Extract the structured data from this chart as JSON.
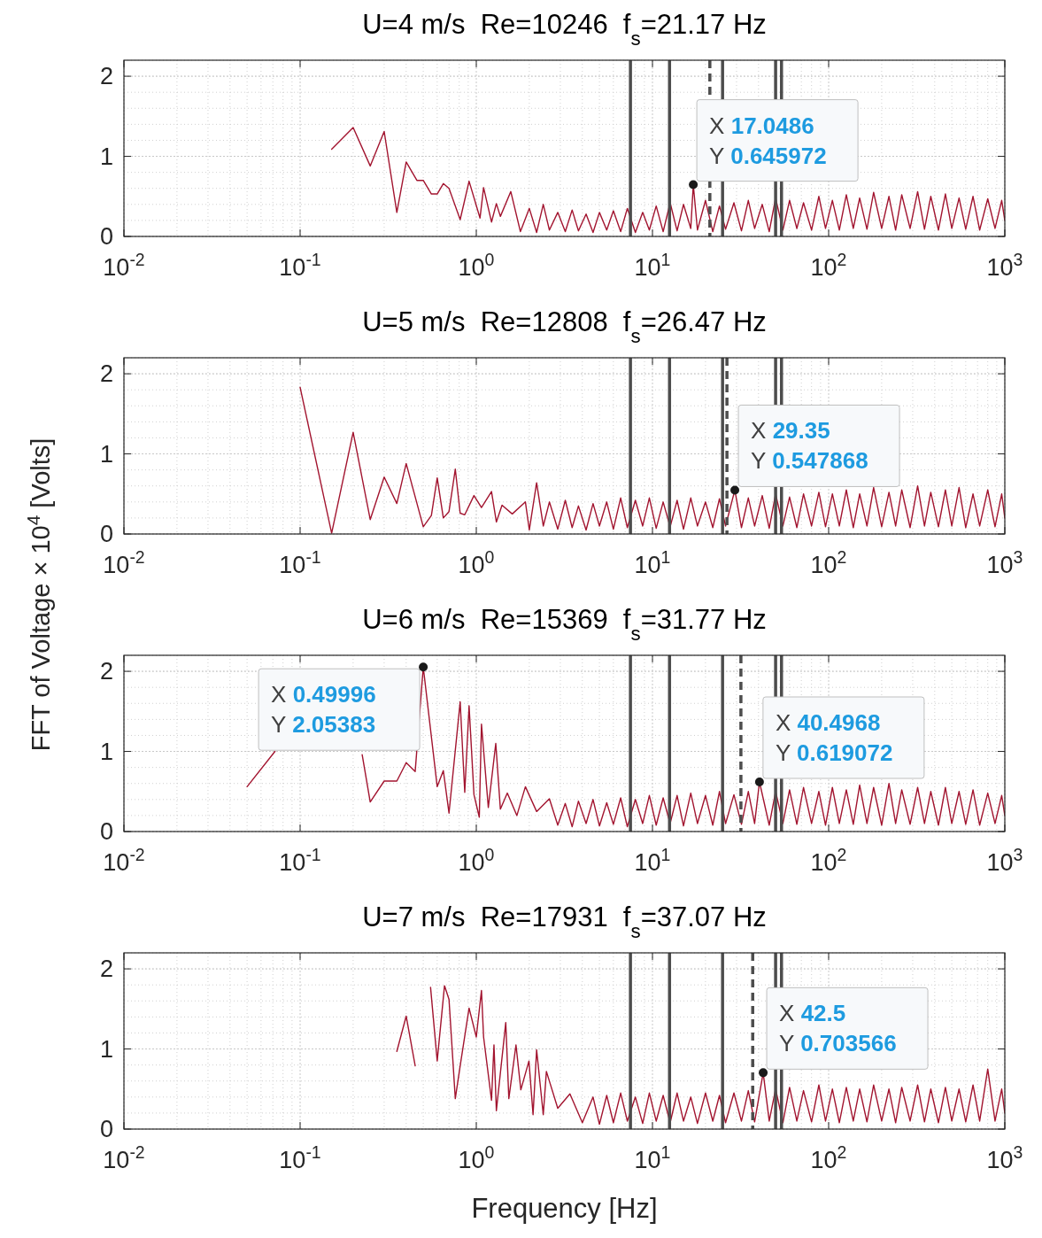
{
  "chart_data": [
    {
      "type": "line",
      "title": "U=4 m/s  Re=10246  f$_{s}$=21.17 Hz",
      "log": "x",
      "grid": true,
      "xlim": [
        0.01,
        1000
      ],
      "ylim": [
        0,
        2.2
      ],
      "xticks": [
        {
          "value": 0.01,
          "label": "10$^{-2}$"
        },
        {
          "value": 0.1,
          "label": "10$^{-1}$"
        },
        {
          "value": 1,
          "label": "10$^{0}$"
        },
        {
          "value": 10,
          "label": "10$^{1}$"
        },
        {
          "value": 100,
          "label": "10$^{2}$"
        },
        {
          "value": 1000,
          "label": "10$^{3}$"
        }
      ],
      "yticks": [
        0,
        1,
        2
      ],
      "series": [
        {
          "color": "#a2142f",
          "x": [
            0.151,
            0.2,
            0.25,
            0.3,
            0.354,
            0.4,
            0.46,
            0.5,
            0.556,
            0.6,
            0.65,
            0.7,
            0.81,
            0.91,
            1.05,
            1.1,
            1.22,
            1.3,
            1.37,
            1.57,
            1.78,
            2,
            2.2,
            2.4,
            2.6,
            2.9,
            3.2,
            3.5,
            3.8,
            4.2,
            4.6,
            5,
            5.5,
            6,
            6.6,
            7.2,
            8,
            8.8,
            9.6,
            10.5,
            11.5,
            12.6,
            13.8,
            15,
            16.5,
            17.0486,
            18,
            20,
            22,
            24,
            26,
            29,
            32,
            35,
            38,
            42,
            46,
            50,
            55,
            60,
            66,
            72,
            80,
            88,
            96,
            105,
            115,
            126,
            138,
            150,
            165,
            180,
            200,
            220,
            240,
            260,
            290,
            320,
            350,
            380,
            420,
            460,
            500,
            550,
            600,
            660,
            720,
            800,
            880,
            960,
            1000
          ],
          "values": [
            1.09,
            1.36,
            0.88,
            1.31,
            0.3,
            0.93,
            0.7,
            0.7,
            0.53,
            0.53,
            0.66,
            0.6,
            0.21,
            0.69,
            0.23,
            0.61,
            0.18,
            0.41,
            0.25,
            0.56,
            0.06,
            0.35,
            0.05,
            0.4,
            0.08,
            0.3,
            0.06,
            0.33,
            0.07,
            0.28,
            0.05,
            0.3,
            0.08,
            0.32,
            0.06,
            0.35,
            0.05,
            0.3,
            0.08,
            0.38,
            0.06,
            0.42,
            0.07,
            0.4,
            0.1,
            0.645972,
            0.08,
            0.45,
            0.06,
            0.38,
            0.09,
            0.42,
            0.07,
            0.45,
            0.1,
            0.4,
            0.06,
            0.48,
            0.08,
            0.45,
            0.1,
            0.42,
            0.08,
            0.5,
            0.1,
            0.45,
            0.08,
            0.52,
            0.1,
            0.48,
            0.09,
            0.55,
            0.1,
            0.5,
            0.08,
            0.52,
            0.1,
            0.56,
            0.09,
            0.5,
            0.08,
            0.53,
            0.1,
            0.48,
            0.09,
            0.5,
            0.08,
            0.47,
            0.1,
            0.45,
            0.2
          ]
        }
      ],
      "ref_lines": [
        {
          "axis": "x",
          "value": 7.5,
          "color": "#4d4d4d",
          "line_style": "solid"
        },
        {
          "axis": "x",
          "value": 12.5,
          "color": "#4d4d4d",
          "line_style": "solid"
        },
        {
          "axis": "x",
          "value": 25,
          "color": "#4d4d4d",
          "line_style": "solid"
        },
        {
          "axis": "x",
          "value": 50,
          "color": "#4d4d4d",
          "line_style": "solid"
        },
        {
          "axis": "x",
          "value": 54,
          "color": "#4d4d4d",
          "line_style": "solid"
        },
        {
          "axis": "x",
          "value": 21.17,
          "color": "#4d4d4d",
          "line_style": "dashed"
        }
      ],
      "annotations": [
        {
          "text": "X 17.0486\nY 0.645972",
          "x": 17.0486,
          "y": 0.645972
        }
      ]
    },
    {
      "type": "line",
      "title": "U=5 m/s  Re=12808  f$_{s}$=26.47 Hz",
      "ylabel": "FFT of Voltage × 10$^{4}$ [Volts]",
      "log": "x",
      "grid": true,
      "xlim": [
        0.01,
        1000
      ],
      "ylim": [
        0,
        2.2
      ],
      "xticks": [
        {
          "value": 0.01,
          "label": "10$^{-2}$"
        },
        {
          "value": 0.1,
          "label": "10$^{-1}$"
        },
        {
          "value": 1,
          "label": "10$^{0}$"
        },
        {
          "value": 10,
          "label": "10$^{1}$"
        },
        {
          "value": 100,
          "label": "10$^{2}$"
        },
        {
          "value": 1000,
          "label": "10$^{3}$"
        }
      ],
      "yticks": [
        0,
        1,
        2
      ],
      "series": [
        {
          "color": "#a2142f",
          "x": [
            0.1,
            0.151,
            0.2,
            0.25,
            0.3,
            0.354,
            0.4,
            0.5,
            0.556,
            0.6,
            0.65,
            0.7,
            0.76,
            0.81,
            0.86,
            0.97,
            1.07,
            1.22,
            1.3,
            1.4,
            1.6,
            1.9,
            2,
            2.2,
            2.4,
            2.6,
            2.9,
            3.2,
            3.5,
            3.8,
            4.2,
            4.6,
            5,
            5.5,
            6,
            6.6,
            7.2,
            8,
            8.8,
            9.6,
            10.5,
            11.5,
            12.6,
            13.8,
            15,
            16.5,
            18,
            20,
            22,
            24,
            26,
            29.35,
            32,
            35,
            38,
            42,
            46,
            50,
            55,
            60,
            66,
            72,
            80,
            88,
            96,
            105,
            115,
            126,
            138,
            150,
            165,
            180,
            200,
            220,
            240,
            260,
            290,
            320,
            350,
            380,
            420,
            460,
            500,
            550,
            600,
            660,
            720,
            800,
            880,
            960,
            1000
          ],
          "values": [
            1.83,
            0.01,
            1.27,
            0.18,
            0.71,
            0.38,
            0.88,
            0.09,
            0.23,
            0.7,
            0.2,
            0.28,
            0.81,
            0.26,
            0.24,
            0.48,
            0.33,
            0.53,
            0.15,
            0.36,
            0.25,
            0.4,
            0.05,
            0.64,
            0.1,
            0.4,
            0.06,
            0.42,
            0.08,
            0.35,
            0.05,
            0.38,
            0.1,
            0.4,
            0.06,
            0.45,
            0.08,
            0.42,
            0.1,
            0.45,
            0.07,
            0.4,
            0.09,
            0.42,
            0.06,
            0.45,
            0.1,
            0.4,
            0.08,
            0.44,
            0.1,
            0.547868,
            0.08,
            0.45,
            0.1,
            0.48,
            0.07,
            0.5,
            0.1,
            0.46,
            0.08,
            0.5,
            0.1,
            0.52,
            0.09,
            0.5,
            0.1,
            0.55,
            0.08,
            0.5,
            0.1,
            0.58,
            0.09,
            0.52,
            0.1,
            0.55,
            0.08,
            0.6,
            0.1,
            0.52,
            0.09,
            0.55,
            0.1,
            0.58,
            0.08,
            0.5,
            0.1,
            0.55,
            0.09,
            0.5,
            0.2
          ]
        }
      ],
      "ref_lines": [
        {
          "axis": "x",
          "value": 7.5,
          "color": "#4d4d4d",
          "line_style": "solid"
        },
        {
          "axis": "x",
          "value": 12.5,
          "color": "#4d4d4d",
          "line_style": "solid"
        },
        {
          "axis": "x",
          "value": 25,
          "color": "#4d4d4d",
          "line_style": "solid"
        },
        {
          "axis": "x",
          "value": 50,
          "color": "#4d4d4d",
          "line_style": "solid"
        },
        {
          "axis": "x",
          "value": 54,
          "color": "#4d4d4d",
          "line_style": "solid"
        },
        {
          "axis": "x",
          "value": 26.47,
          "color": "#4d4d4d",
          "line_style": "dashed"
        }
      ],
      "annotations": [
        {
          "text": "X 29.35\nY 0.547868",
          "x": 29.35,
          "y": 0.547868
        }
      ]
    },
    {
      "type": "line",
      "title": "U=6 m/s  Re=15369  f$_{s}$=31.77 Hz",
      "log": "x",
      "grid": true,
      "xlim": [
        0.01,
        1000
      ],
      "ylim": [
        0,
        2.2
      ],
      "xticks": [
        {
          "value": 0.01,
          "label": "10$^{-2}$"
        },
        {
          "value": 0.1,
          "label": "10$^{-1}$"
        },
        {
          "value": 1,
          "label": "10$^{0}$"
        },
        {
          "value": 10,
          "label": "10$^{1}$"
        },
        {
          "value": 100,
          "label": "10$^{2}$"
        },
        {
          "value": 1000,
          "label": "10$^{3}$"
        }
      ],
      "yticks": [
        0,
        1,
        2
      ],
      "series": [
        {
          "color": "#a2142f",
          "x": [
            0.05,
            0.072,
            0.1,
            0.225,
            0.25,
            0.3,
            0.354,
            0.4,
            0.45,
            0.49996,
            0.6,
            0.65,
            0.7,
            0.81,
            0.86,
            0.91,
            0.97,
            1.04,
            1.07,
            1.17,
            1.29,
            1.37,
            1.5,
            1.7,
            1.9,
            2.2,
            2.6,
            2.9,
            3.2,
            3.5,
            3.8,
            4.2,
            4.6,
            5,
            5.5,
            6,
            6.6,
            7.2,
            8,
            8.8,
            9.6,
            10.5,
            11.5,
            12.6,
            13.8,
            15,
            16.5,
            18,
            20,
            22,
            24,
            26,
            29,
            32,
            35,
            38,
            40.4968,
            46,
            50,
            55,
            60,
            66,
            72,
            80,
            88,
            96,
            105,
            115,
            126,
            138,
            150,
            165,
            180,
            200,
            220,
            240,
            260,
            290,
            320,
            350,
            380,
            420,
            460,
            500,
            550,
            600,
            660,
            720,
            800,
            880,
            960,
            1000
          ],
          "values": [
            0.56,
            1.0,
            null,
            0.96,
            0.37,
            0.63,
            0.63,
            0.86,
            0.75,
            2.05383,
            0.56,
            0.76,
            0.23,
            1.62,
            0.49,
            1.57,
            0.46,
            0.18,
            1.34,
            0.3,
            1.1,
            0.28,
            0.48,
            0.2,
            0.56,
            0.25,
            0.41,
            0.08,
            0.35,
            0.06,
            0.38,
            0.1,
            0.4,
            0.07,
            0.36,
            0.09,
            0.42,
            0.06,
            0.4,
            0.1,
            0.45,
            0.08,
            0.42,
            0.1,
            0.45,
            0.07,
            0.48,
            0.1,
            0.45,
            0.08,
            0.5,
            0.1,
            0.46,
            0.09,
            0.5,
            0.1,
            0.619072,
            0.08,
            0.5,
            0.1,
            0.52,
            0.09,
            0.55,
            0.1,
            0.5,
            0.08,
            0.55,
            0.1,
            0.52,
            0.09,
            0.58,
            0.1,
            0.55,
            0.08,
            0.6,
            0.1,
            0.52,
            0.09,
            0.55,
            0.1,
            0.5,
            0.08,
            0.55,
            0.1,
            0.5,
            0.09,
            0.52,
            0.08,
            0.48,
            0.1,
            0.45,
            0.2
          ]
        }
      ],
      "ref_lines": [
        {
          "axis": "x",
          "value": 7.5,
          "color": "#4d4d4d",
          "line_style": "solid"
        },
        {
          "axis": "x",
          "value": 12.5,
          "color": "#4d4d4d",
          "line_style": "solid"
        },
        {
          "axis": "x",
          "value": 25,
          "color": "#4d4d4d",
          "line_style": "solid"
        },
        {
          "axis": "x",
          "value": 50,
          "color": "#4d4d4d",
          "line_style": "solid"
        },
        {
          "axis": "x",
          "value": 54,
          "color": "#4d4d4d",
          "line_style": "solid"
        },
        {
          "axis": "x",
          "value": 31.77,
          "color": "#4d4d4d",
          "line_style": "dashed"
        }
      ],
      "annotations": [
        {
          "text": "X 0.49996\nY 2.05383",
          "x": 0.49996,
          "y": 2.05383
        },
        {
          "text": "X 40.4968\nY 0.619072",
          "x": 40.4968,
          "y": 0.619072
        }
      ]
    },
    {
      "type": "line",
      "title": "U=7 m/s  Re=17931  f$_{s}$=37.07 Hz",
      "xlabel": "Frequency [Hz]",
      "log": "x",
      "grid": true,
      "xlim": [
        0.01,
        1000
      ],
      "ylim": [
        0,
        2.2
      ],
      "xticks": [
        {
          "value": 0.01,
          "label": "10$^{-2}$"
        },
        {
          "value": 0.1,
          "label": "10$^{-1}$"
        },
        {
          "value": 1,
          "label": "10$^{0}$"
        },
        {
          "value": 10,
          "label": "10$^{1}$"
        },
        {
          "value": 100,
          "label": "10$^{2}$"
        },
        {
          "value": 1000,
          "label": "10$^{3}$"
        }
      ],
      "yticks": [
        0,
        1,
        2
      ],
      "series": [
        {
          "color": "#a2142f",
          "x": [
            0.354,
            0.4,
            0.45,
            0.5,
            0.55,
            0.6,
            0.66,
            0.7,
            0.76,
            0.81,
            0.91,
            1,
            1.07,
            1.1,
            1.22,
            1.26,
            1.3,
            1.47,
            1.53,
            1.68,
            1.79,
            1.99,
            2.1,
            2.2,
            2.4,
            2.5,
            2.9,
            3.4,
            4,
            4.6,
            5,
            5.5,
            6,
            6.6,
            7.2,
            8,
            8.8,
            9.6,
            10.5,
            11.5,
            12.6,
            13.8,
            15,
            16.5,
            18,
            20,
            22,
            24,
            26,
            29,
            32,
            35,
            38,
            42.5,
            46,
            50,
            55,
            60,
            66,
            72,
            80,
            88,
            96,
            105,
            115,
            126,
            138,
            150,
            165,
            180,
            200,
            220,
            240,
            260,
            290,
            320,
            350,
            380,
            420,
            460,
            500,
            550,
            600,
            660,
            720,
            800,
            880,
            960,
            1000
          ],
          "values": [
            0.97,
            1.41,
            0.79,
            null,
            1.77,
            0.85,
            1.79,
            1.62,
            0.38,
            0.79,
            1.51,
            1.15,
            1.73,
            1.15,
            0.36,
            1.05,
            0.23,
            1.33,
            0.38,
            1.05,
            0.49,
            0.85,
            0.18,
            0.99,
            0.18,
            0.72,
            0.26,
            0.44,
            0.08,
            0.4,
            0.06,
            0.42,
            0.08,
            0.45,
            0.1,
            0.4,
            0.07,
            0.45,
            0.1,
            0.42,
            0.08,
            0.45,
            0.1,
            0.4,
            0.07,
            0.45,
            0.1,
            0.42,
            0.08,
            0.45,
            0.1,
            0.48,
            0.09,
            0.703566,
            0.1,
            0.5,
            0.08,
            0.52,
            0.1,
            0.48,
            0.09,
            0.55,
            0.1,
            0.5,
            0.08,
            0.52,
            0.1,
            0.5,
            0.09,
            0.55,
            0.1,
            0.5,
            0.08,
            0.52,
            0.1,
            0.55,
            0.09,
            0.5,
            0.08,
            0.52,
            0.1,
            0.5,
            0.09,
            0.55,
            0.1,
            0.75,
            0.1,
            0.5,
            0.2
          ]
        }
      ],
      "ref_lines": [
        {
          "axis": "x",
          "value": 7.5,
          "color": "#4d4d4d",
          "line_style": "solid"
        },
        {
          "axis": "x",
          "value": 12.5,
          "color": "#4d4d4d",
          "line_style": "solid"
        },
        {
          "axis": "x",
          "value": 25,
          "color": "#4d4d4d",
          "line_style": "solid"
        },
        {
          "axis": "x",
          "value": 50,
          "color": "#4d4d4d",
          "line_style": "solid"
        },
        {
          "axis": "x",
          "value": 54,
          "color": "#4d4d4d",
          "line_style": "solid"
        },
        {
          "axis": "x",
          "value": 37.07,
          "color": "#4d4d4d",
          "line_style": "dashed"
        }
      ],
      "annotations": [
        {
          "text": "X 42.5\nY 0.703566",
          "x": 42.5,
          "y": 0.703566
        }
      ]
    }
  ]
}
